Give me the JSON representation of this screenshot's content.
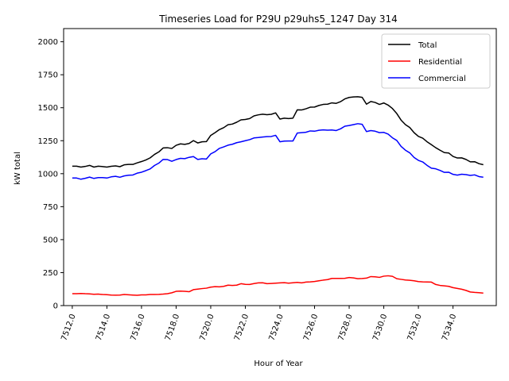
{
  "chart_data": {
    "type": "line",
    "title": "Timeseries Load for P29U p29uhs5_1247  Day 314",
    "xlabel": "Hour of Year",
    "ylabel": "kW total",
    "xlim": [
      7511.5,
      7536.5
    ],
    "ylim": [
      0,
      2100
    ],
    "x_start": 7512.0,
    "x_step": 0.25,
    "x_ticks": [
      7512,
      7514,
      7516,
      7518,
      7520,
      7522,
      7524,
      7526,
      7528,
      7530,
      7532,
      7534
    ],
    "x_tick_labels": [
      "7512.0",
      "7514.0",
      "7516.0",
      "7518.0",
      "7520.0",
      "7522.0",
      "7524.0",
      "7526.0",
      "7528.0",
      "7530.0",
      "7532.0",
      "7534.0"
    ],
    "y_ticks": [
      0,
      250,
      500,
      750,
      1000,
      1250,
      1500,
      1750,
      2000
    ],
    "y_tick_labels": [
      "0",
      "250",
      "500",
      "750",
      "1000",
      "1250",
      "1500",
      "1750",
      "2000"
    ],
    "legend_position": "top-right",
    "grid": false,
    "series": [
      {
        "name": "Total",
        "color": "#000000",
        "values": [
          1057,
          1057,
          1050,
          1055,
          1063,
          1050,
          1057,
          1054,
          1050,
          1056,
          1059,
          1053,
          1067,
          1070,
          1070,
          1082,
          1092,
          1104,
          1120,
          1146,
          1165,
          1195,
          1197,
          1191,
          1215,
          1226,
          1222,
          1229,
          1251,
          1233,
          1242,
          1243,
          1290,
          1311,
          1334,
          1349,
          1371,
          1376,
          1390,
          1408,
          1411,
          1418,
          1438,
          1446,
          1451,
          1447,
          1450,
          1461,
          1414,
          1421,
          1418,
          1421,
          1484,
          1483,
          1492,
          1504,
          1505,
          1517,
          1525,
          1527,
          1537,
          1533,
          1546,
          1567,
          1578,
          1582,
          1583,
          1579,
          1527,
          1547,
          1540,
          1525,
          1536,
          1520,
          1494,
          1456,
          1406,
          1372,
          1350,
          1311,
          1283,
          1269,
          1242,
          1220,
          1197,
          1178,
          1160,
          1157,
          1131,
          1119,
          1120,
          1108,
          1090,
          1091,
          1076,
          1068
        ]
      },
      {
        "name": "Residential",
        "color": "#ff0000",
        "values": [
          90,
          90,
          92,
          90,
          89,
          86,
          87,
          84,
          83,
          80,
          79,
          80,
          84,
          82,
          80,
          78,
          81,
          81,
          84,
          84,
          85,
          87,
          90,
          97,
          108,
          110,
          108,
          105,
          121,
          125,
          129,
          132,
          140,
          144,
          142,
          146,
          155,
          153,
          155,
          166,
          161,
          160,
          167,
          172,
          173,
          166,
          168,
          170,
          172,
          174,
          170,
          173,
          176,
          172,
          178,
          180,
          183,
          188,
          193,
          197,
          206,
          206,
          206,
          207,
          213,
          210,
          204,
          205,
          208,
          220,
          218,
          214,
          223,
          226,
          222,
          204,
          199,
          194,
          192,
          188,
          182,
          180,
          179,
          178,
          160,
          153,
          150,
          146,
          136,
          130,
          124,
          115,
          103,
          100,
          98,
          95
        ]
      },
      {
        "name": "Commercial",
        "color": "#0000ff",
        "values": [
          967,
          967,
          958,
          965,
          974,
          964,
          970,
          970,
          967,
          976,
          980,
          973,
          983,
          988,
          990,
          1004,
          1011,
          1023,
          1036,
          1062,
          1080,
          1108,
          1107,
          1094,
          1107,
          1116,
          1114,
          1124,
          1130,
          1108,
          1113,
          1111,
          1150,
          1167,
          1192,
          1203,
          1216,
          1223,
          1235,
          1242,
          1250,
          1258,
          1271,
          1274,
          1278,
          1281,
          1282,
          1291,
          1242,
          1247,
          1248,
          1248,
          1308,
          1311,
          1314,
          1324,
          1322,
          1329,
          1332,
          1330,
          1331,
          1327,
          1340,
          1360,
          1365,
          1372,
          1379,
          1374,
          1319,
          1327,
          1322,
          1311,
          1313,
          1300,
          1272,
          1252,
          1207,
          1178,
          1158,
          1123,
          1101,
          1089,
          1063,
          1042,
          1037,
          1025,
          1010,
          1011,
          995,
          989,
          996,
          993,
          987,
          991,
          978,
          973
        ]
      }
    ]
  }
}
